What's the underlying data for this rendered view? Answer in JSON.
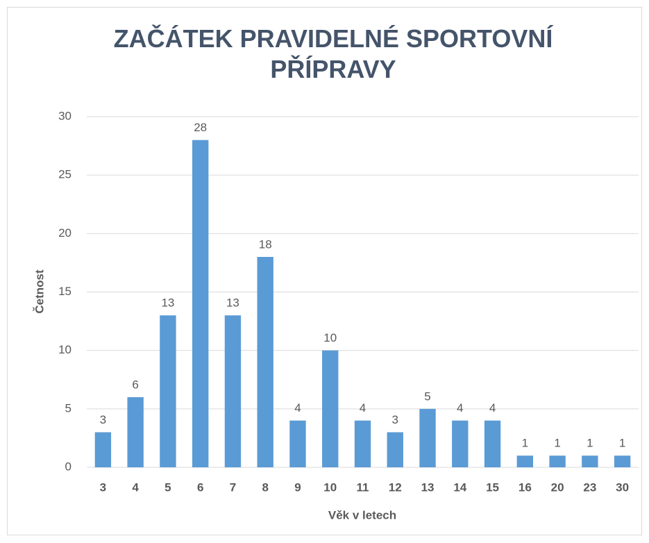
{
  "chart_data": {
    "type": "bar",
    "title": "ZAČÁTEK PRAVIDELNÉ SPORTOVNÍ PŘÍPRAVY",
    "x_label": "Věk v letech",
    "y_label": "Četnost",
    "categories": [
      "3",
      "4",
      "5",
      "6",
      "7",
      "8",
      "9",
      "10",
      "11",
      "12",
      "13",
      "14",
      "15",
      "16",
      "20",
      "23",
      "30"
    ],
    "values": [
      3,
      6,
      13,
      28,
      13,
      18,
      4,
      10,
      4,
      3,
      5,
      4,
      4,
      1,
      1,
      1,
      1
    ],
    "color": "#5b9bd5",
    "ylim": [
      0,
      30
    ],
    "yticks": [
      0,
      5,
      10,
      15,
      20,
      25,
      30
    ],
    "grid": true
  }
}
